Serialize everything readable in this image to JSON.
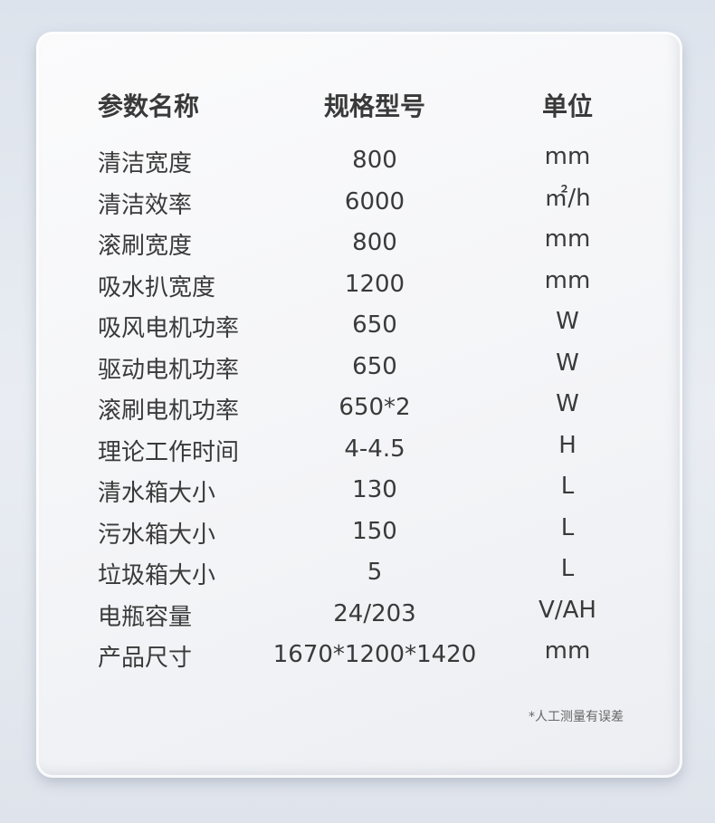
{
  "table": {
    "header": [
      "参数名称",
      "规格型号",
      "单位"
    ],
    "rows": [
      [
        "清洁宽度",
        "800",
        "mm"
      ],
      [
        "清洁效率",
        "6000",
        "㎡/h"
      ],
      [
        "滚刷宽度",
        "800",
        "mm"
      ],
      [
        "吸水扒宽度",
        "1200",
        "mm"
      ],
      [
        "吸风电机功率",
        "650",
        "W"
      ],
      [
        "驱动电机功率",
        "650",
        "W"
      ],
      [
        "滚刷电机功率",
        "650*2",
        "W"
      ],
      [
        "理论工作时间",
        "4-4.5",
        "H"
      ],
      [
        "清水箱大小",
        "130",
        "L"
      ],
      [
        "污水箱大小",
        "150",
        "L"
      ],
      [
        "垃圾箱大小",
        "5",
        "L"
      ],
      [
        "电瓶容量",
        "24/203",
        "V/AH"
      ],
      [
        "产品尺寸",
        "1670*1200*1420",
        "mm"
      ]
    ]
  },
  "footnote": "*人工测量有误差"
}
